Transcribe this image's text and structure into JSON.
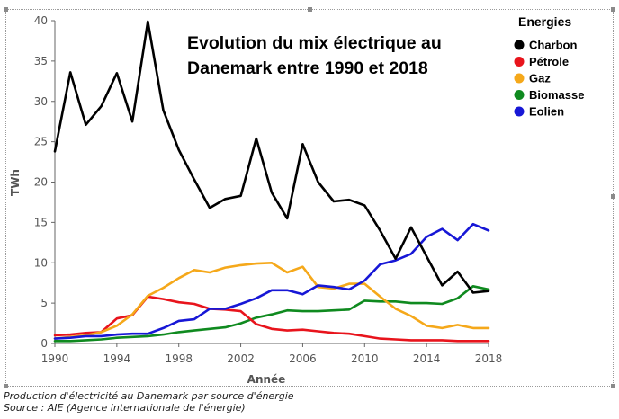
{
  "chart_data": {
    "type": "line",
    "title_lines": [
      "Evolution du mix électrique au",
      "Danemark entre 1990 et 2018"
    ],
    "xlabel": "Année",
    "ylabel": "TWh",
    "xlim": [
      1990,
      2018
    ],
    "ylim": [
      0,
      40
    ],
    "x_ticks": [
      1990,
      1994,
      1998,
      2002,
      2006,
      2010,
      2014,
      2018
    ],
    "y_ticks": [
      0,
      5,
      10,
      15,
      20,
      25,
      30,
      35,
      40
    ],
    "grid": false,
    "legend": {
      "title": "Energies",
      "position": "top-right"
    },
    "x": [
      1990,
      1991,
      1992,
      1993,
      1994,
      1995,
      1996,
      1997,
      1998,
      1999,
      2000,
      2001,
      2002,
      2003,
      2004,
      2005,
      2006,
      2007,
      2008,
      2009,
      2010,
      2011,
      2012,
      2013,
      2014,
      2015,
      2016,
      2017,
      2018
    ],
    "series": [
      {
        "name": "Charbon",
        "color": "#000000",
        "values": [
          23.8,
          33.6,
          27.1,
          29.4,
          33.5,
          27.5,
          39.9,
          28.9,
          24.0,
          20.3,
          16.8,
          17.9,
          18.3,
          25.4,
          18.7,
          15.5,
          24.7,
          20.0,
          17.6,
          17.8,
          17.1,
          14.0,
          10.5,
          14.4,
          10.8,
          7.2,
          8.9,
          6.3,
          6.5
        ]
      },
      {
        "name": "Pétrole",
        "color": "#e8141c",
        "values": [
          1.0,
          1.1,
          1.3,
          1.4,
          3.1,
          3.5,
          5.8,
          5.5,
          5.1,
          4.9,
          4.3,
          4.2,
          4.0,
          2.4,
          1.8,
          1.6,
          1.7,
          1.5,
          1.3,
          1.2,
          0.9,
          0.6,
          0.5,
          0.4,
          0.4,
          0.4,
          0.3,
          0.3,
          0.3
        ]
      },
      {
        "name": "Gaz",
        "color": "#f5a81a",
        "values": [
          0.6,
          0.8,
          1.0,
          1.4,
          2.2,
          3.6,
          5.9,
          6.9,
          8.1,
          9.1,
          8.8,
          9.4,
          9.7,
          9.9,
          10.0,
          8.8,
          9.5,
          7.0,
          6.8,
          7.4,
          7.4,
          5.8,
          4.3,
          3.4,
          2.2,
          1.9,
          2.3,
          1.9,
          1.9
        ]
      },
      {
        "name": "Biomasse",
        "color": "#0f8a1f",
        "values": [
          0.3,
          0.3,
          0.4,
          0.5,
          0.7,
          0.8,
          0.9,
          1.1,
          1.4,
          1.6,
          1.8,
          2.0,
          2.5,
          3.2,
          3.6,
          4.1,
          4.0,
          4.0,
          4.1,
          4.2,
          5.3,
          5.2,
          5.2,
          5.0,
          5.0,
          4.9,
          5.6,
          7.1,
          6.7
        ]
      },
      {
        "name": "Eolien",
        "color": "#1717d6",
        "values": [
          0.6,
          0.7,
          0.9,
          0.9,
          1.1,
          1.2,
          1.2,
          1.9,
          2.8,
          3.0,
          4.3,
          4.3,
          4.9,
          5.6,
          6.6,
          6.6,
          6.1,
          7.2,
          7.0,
          6.7,
          7.8,
          9.8,
          10.3,
          11.1,
          13.2,
          14.2,
          12.8,
          14.8,
          14.0
        ]
      }
    ]
  },
  "caption": {
    "line1": "Production d'électricité au Danemark par source d'énergie",
    "line2": "Source : AIE (Agence internationale de l'énergie)"
  }
}
